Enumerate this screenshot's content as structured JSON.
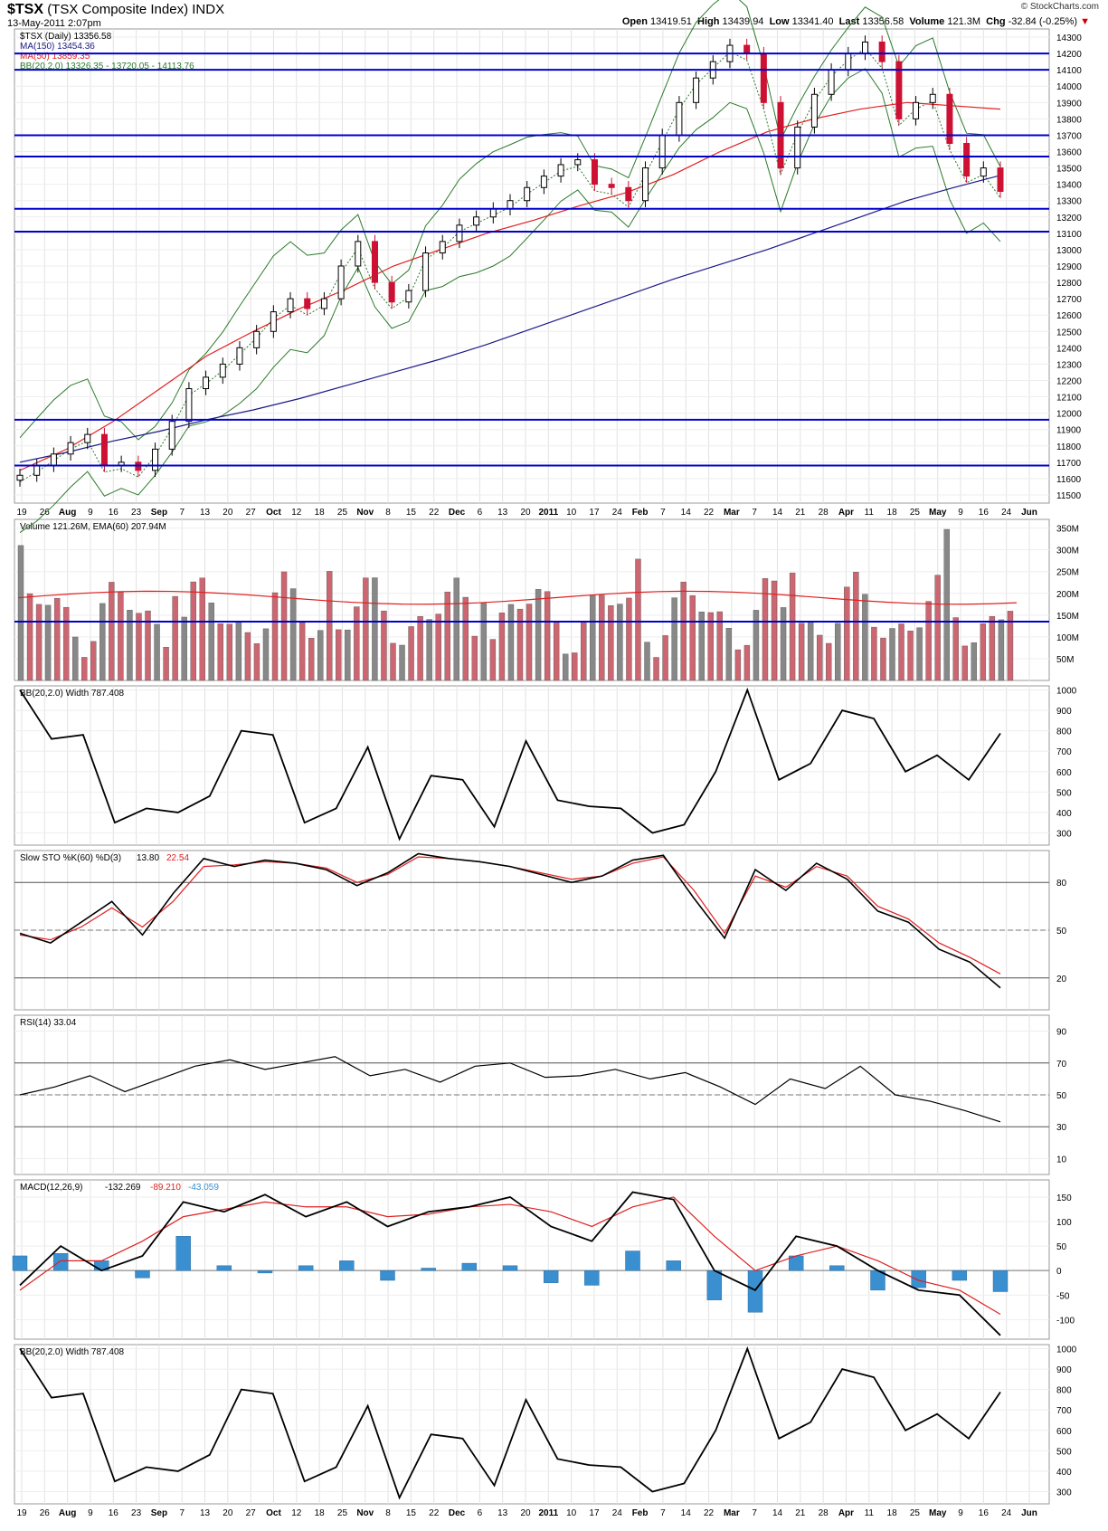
{
  "header": {
    "symbol": "$TSX",
    "full_name": "(TSX Composite Index)",
    "exchange": "INDX",
    "datetime": "13-May-2011 2:07pm",
    "brand": "© StockCharts.com",
    "open_label": "Open",
    "open": "13419.51",
    "high_label": "High",
    "high": "13439.94",
    "low_label": "Low",
    "low": "13341.40",
    "last_label": "Last",
    "last": "13356.58",
    "volume_label": "Volume",
    "volume": "121.3M",
    "chg_label": "Chg",
    "chg": "-32.84 (-0.25%)"
  },
  "colors": {
    "up_candle": "#000000",
    "down_candle": "#cc1133",
    "trendline": "#0000cc",
    "ma150": "#1a1a8a",
    "ma50": "#e02020",
    "bollinger": "#2a7a2a",
    "volume_up": "#888888",
    "volume_down": "#cc6670",
    "macd_hist": "#3a8fd0"
  },
  "chart_data": [
    {
      "type": "candlestick",
      "legend": [
        "$TSX (Daily) 13356.58",
        "MA(150) 13454.36",
        "MA(50) 13859.35",
        "BB(20,2.0) 13326.35 - 13720.05 - 14113.76"
      ],
      "series": [
        {
          "name": "$TSX (Daily)",
          "values": [
            11620,
            11680,
            11750,
            11820,
            11870,
            11680,
            11700,
            11650,
            11780,
            11950,
            12150,
            12220,
            12300,
            12400,
            12500,
            12620,
            12700,
            12640,
            12700,
            12900,
            13050,
            12800,
            12680,
            12750,
            12980,
            13050,
            13150,
            13200,
            13250,
            13300,
            13380,
            13450,
            13520,
            13550,
            13400,
            13380,
            13300,
            13500,
            13700,
            13900,
            14050,
            14150,
            14250,
            14200,
            13900,
            13500,
            13750,
            13950,
            14100,
            14200,
            14270,
            14150,
            13800,
            13900,
            13950,
            13650,
            13450,
            13500,
            13356.58
          ]
        },
        {
          "name": "MA(150)",
          "values": [
            11700,
            11760,
            11830,
            11890,
            11960,
            12020,
            12090,
            12170,
            12250,
            12330,
            12420,
            12520,
            12620,
            12720,
            12820,
            12910,
            13000,
            13100,
            13200,
            13300,
            13380,
            13454.36
          ]
        },
        {
          "name": "MA(50)",
          "values": [
            11650,
            11780,
            11950,
            12150,
            12350,
            12500,
            12640,
            12760,
            12900,
            13000,
            13100,
            13180,
            13270,
            13350,
            13460,
            13600,
            13720,
            13800,
            13860,
            13900,
            13880,
            13859.35
          ]
        }
      ],
      "x_tick_labels": [
        "19",
        "26",
        "Aug",
        "9",
        "16",
        "23",
        "Sep",
        "7",
        "13",
        "20",
        "27",
        "Oct",
        "12",
        "18",
        "25",
        "Nov",
        "8",
        "15",
        "22",
        "Dec",
        "6",
        "13",
        "20",
        "2011",
        "10",
        "17",
        "24",
        "Feb",
        "7",
        "14",
        "22",
        "Mar",
        "7",
        "14",
        "21",
        "28",
        "Apr",
        "11",
        "18",
        "25",
        "May",
        "9",
        "16",
        "24",
        "Jun"
      ],
      "y_tick_labels": [
        "14300",
        "14200",
        "14100",
        "14000",
        "13900",
        "13800",
        "13700",
        "13600",
        "13500",
        "13400",
        "13300",
        "13200",
        "13100",
        "13000",
        "12900",
        "12800",
        "12700",
        "12600",
        "12500",
        "12400",
        "12300",
        "12200",
        "12100",
        "12000",
        "11900",
        "11800",
        "11700",
        "11600",
        "11500"
      ],
      "ylim": [
        11450,
        14350
      ],
      "horizontal_lines": [
        14200,
        14100,
        13700,
        13570,
        13250,
        13110,
        11960,
        11680
      ]
    },
    {
      "type": "bar",
      "legend": "Volume 121.26M, EMA(60) 207.94M",
      "y_tick_labels": [
        "350M",
        "300M",
        "250M",
        "200M",
        "150M",
        "100M",
        "50M"
      ],
      "ylim": [
        0,
        370
      ],
      "horizontal_lines": [
        135
      ]
    },
    {
      "type": "line",
      "legend": "BB(20,2.0) Width 787.408",
      "series": [
        {
          "name": "BB(20,2.0) Width",
          "values": [
            1000,
            760,
            780,
            350,
            420,
            400,
            480,
            800,
            780,
            350,
            420,
            720,
            270,
            580,
            560,
            330,
            750,
            460,
            430,
            420,
            300,
            340,
            600,
            1000,
            560,
            640,
            900,
            860,
            600,
            680,
            560,
            787.408
          ]
        }
      ],
      "y_tick_labels": [
        "1000",
        "900",
        "800",
        "700",
        "600",
        "500",
        "400",
        "300"
      ],
      "ylim": [
        240,
        1020
      ]
    },
    {
      "type": "line",
      "legend": [
        "Slow STO %K(60) %D(3)",
        "13.80",
        "22.54"
      ],
      "series": [
        {
          "name": "%K(60)",
          "values": [
            48,
            42,
            55,
            68,
            47,
            73,
            95,
            90,
            94,
            92,
            88,
            78,
            86,
            98,
            95,
            93,
            90,
            85,
            80,
            84,
            94,
            97,
            70,
            45,
            88,
            75,
            92,
            82,
            62,
            55,
            38,
            30,
            13.8
          ]
        },
        {
          "name": "%D(3)",
          "values": [
            47,
            44,
            52,
            64,
            52,
            68,
            90,
            91,
            93,
            92,
            89,
            80,
            85,
            96,
            95,
            93,
            90,
            86,
            82,
            84,
            92,
            96,
            75,
            48,
            84,
            77,
            90,
            84,
            65,
            57,
            42,
            33,
            22.54
          ]
        }
      ],
      "y_tick_labels": [
        "80",
        "50",
        "20"
      ],
      "ylim": [
        0,
        100
      ]
    },
    {
      "type": "line",
      "legend": "RSI(14) 33.04",
      "series": [
        {
          "name": "RSI(14)",
          "values": [
            50,
            55,
            62,
            52,
            60,
            68,
            72,
            66,
            70,
            74,
            62,
            66,
            58,
            68,
            70,
            61,
            62,
            66,
            60,
            64,
            55,
            44,
            60,
            54,
            68,
            50,
            46,
            40,
            33.04
          ]
        }
      ],
      "y_tick_labels": [
        "90",
        "70",
        "50",
        "30",
        "10"
      ],
      "ylim": [
        0,
        100
      ]
    },
    {
      "type": "line",
      "legend": [
        "MACD(12,26,9)",
        "-132.269",
        "-89.210",
        "-43.059"
      ],
      "series": [
        {
          "name": "MACD(12,26,9)",
          "values": [
            -30,
            50,
            0,
            30,
            140,
            120,
            155,
            110,
            140,
            90,
            120,
            130,
            150,
            90,
            60,
            160,
            145,
            0,
            -40,
            70,
            50,
            0,
            -40,
            -50,
            -132.269
          ]
        },
        {
          "name": "Signal",
          "values": [
            -40,
            20,
            20,
            60,
            110,
            125,
            140,
            130,
            130,
            110,
            115,
            130,
            135,
            120,
            90,
            130,
            150,
            70,
            0,
            30,
            50,
            20,
            -20,
            -40,
            -89.21
          ]
        },
        {
          "name": "Histogram",
          "values": [
            30,
            35,
            20,
            -15,
            70,
            10,
            -5,
            10,
            20,
            -20,
            5,
            15,
            10,
            -25,
            -30,
            40,
            20,
            -60,
            -85,
            30,
            10,
            -40,
            -35,
            -20,
            -43.059
          ]
        }
      ],
      "y_tick_labels": [
        "150",
        "100",
        "50",
        "0",
        "-50",
        "-100"
      ],
      "ylim": [
        -140,
        185
      ]
    },
    {
      "type": "line",
      "legend": "BB(20,2.0) Width 787.408",
      "series": [
        {
          "name": "BB(20,2.0) Width",
          "values": [
            1000,
            760,
            780,
            350,
            420,
            400,
            480,
            800,
            780,
            350,
            420,
            720,
            270,
            580,
            560,
            330,
            750,
            460,
            430,
            420,
            300,
            340,
            600,
            1000,
            560,
            640,
            900,
            860,
            600,
            680,
            560,
            787.408
          ]
        }
      ],
      "y_tick_labels": [
        "1000",
        "900",
        "800",
        "700",
        "600",
        "500",
        "400",
        "300"
      ],
      "ylim": [
        240,
        1020
      ],
      "x_tick_labels": [
        "19",
        "26",
        "Aug",
        "9",
        "16",
        "23",
        "Sep",
        "7",
        "13",
        "20",
        "27",
        "Oct",
        "12",
        "18",
        "25",
        "Nov",
        "8",
        "15",
        "22",
        "Dec",
        "6",
        "13",
        "20",
        "2011",
        "10",
        "17",
        "24",
        "Feb",
        "7",
        "14",
        "22",
        "Mar",
        "7",
        "14",
        "21",
        "28",
        "Apr",
        "11",
        "18",
        "25",
        "May",
        "9",
        "16",
        "24",
        "Jun"
      ]
    }
  ]
}
